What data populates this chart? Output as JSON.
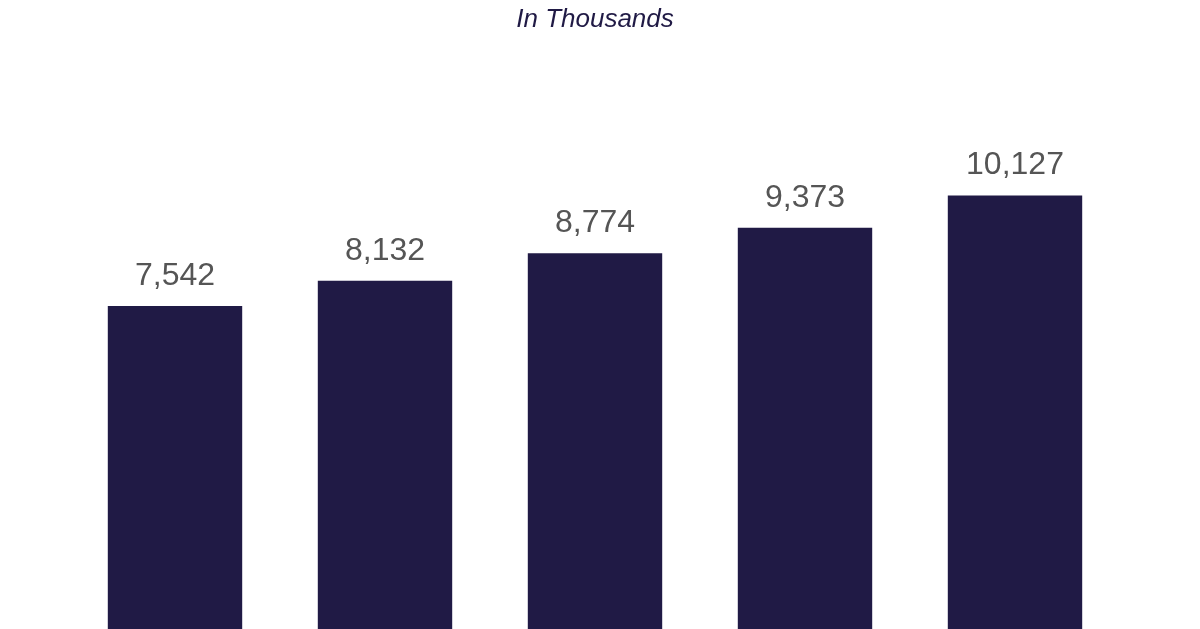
{
  "chart_data": {
    "type": "bar",
    "subtitle": "In Thousands",
    "categories": [
      null,
      null,
      null,
      null,
      null
    ],
    "values": [
      7542,
      8132,
      8774,
      9373,
      10127
    ],
    "value_labels": [
      "7,542",
      "8,132",
      "8,774",
      "9,373",
      "10,127"
    ],
    "color": "#201a45"
  }
}
